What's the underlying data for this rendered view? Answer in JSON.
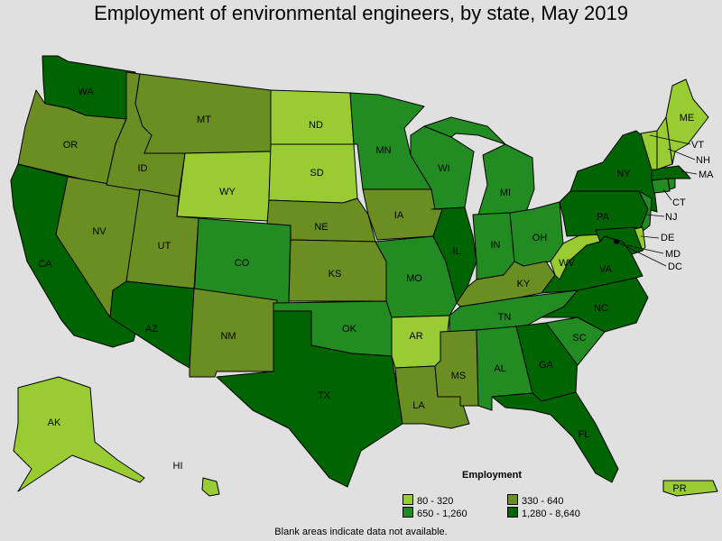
{
  "title": "Employment of environmental engineers, by state, May 2019",
  "footnote": "Blank areas indicate data not available.",
  "legend": {
    "title": "Employment",
    "items": [
      {
        "label": "80 - 320",
        "color": "#99cc33"
      },
      {
        "label": "330 - 640",
        "color": "#6b8e23"
      },
      {
        "label": "650 - 1,260",
        "color": "#228b22"
      },
      {
        "label": "1,280 - 8,640",
        "color": "#006400"
      }
    ]
  },
  "colors": {
    "c1": "#99cc33",
    "c2": "#6b8e23",
    "c3": "#228b22",
    "c4": "#006400",
    "background": "#e0e0e0"
  },
  "states": {
    "WA": 3,
    "OR": 1,
    "CA": 3,
    "NV": 1,
    "ID": 1,
    "MT": 1,
    "WY": 0,
    "UT": 1,
    "CO": 2,
    "AZ": 3,
    "NM": 1,
    "ND": 0,
    "SD": 0,
    "NE": 1,
    "KS": 1,
    "OK": 2,
    "TX": 3,
    "MN": 2,
    "IA": 1,
    "MO": 2,
    "AR": 0,
    "LA": 1,
    "WI": 2,
    "IL": 3,
    "MS": 1,
    "MI": 2,
    "IN": 2,
    "KY": 1,
    "TN": 2,
    "AL": 2,
    "OH": 2,
    "WV": 0,
    "GA": 3,
    "FL": 3,
    "SC": 2,
    "NC": 3,
    "VA": 3,
    "PA": 3,
    "NY": 3,
    "ME": 0,
    "VT": 0,
    "NH": 0,
    "MA": 3,
    "CT": 2,
    "RI": 2,
    "NJ": 2,
    "DE": 0,
    "MD": 3,
    "DC": 3,
    "AK": 0,
    "HI": 0,
    "PR": 0
  }
}
